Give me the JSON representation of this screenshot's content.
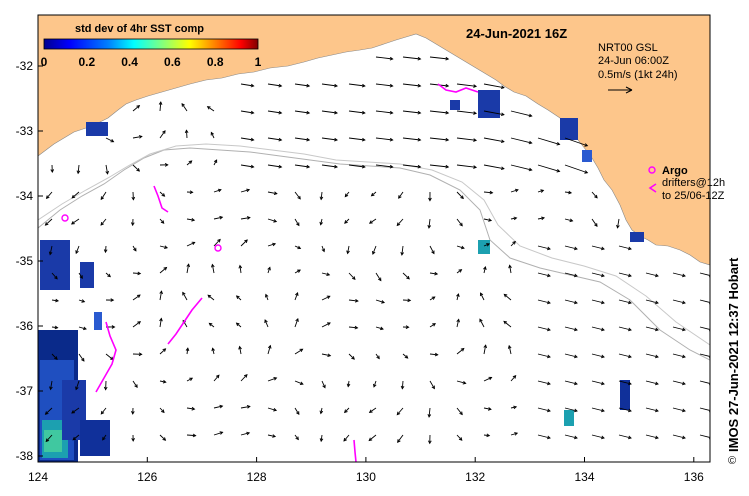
{
  "title": "24-Jun-2021 16Z",
  "colorbar": {
    "title": "std dev of 4hr SST comp",
    "ticks": [
      "0",
      "0.2",
      "0.4",
      "0.6",
      "0.8",
      "1"
    ],
    "colors": [
      "#00008f",
      "#0000ff",
      "#0080ff",
      "#00ffff",
      "#80ff80",
      "#ffff00",
      "#ff8000",
      "#ff0000",
      "#800000"
    ]
  },
  "current_info": {
    "source": "NRT00 GSL",
    "time": "24-Jun 06:00Z",
    "scale": "0.5m/s (1kt 24h)"
  },
  "argo": {
    "label": "Argo",
    "drifters_line1": "drifters@12h",
    "drifters_line2": "to 25/06-12Z"
  },
  "credit": "IMOS 27-Jun-2021 12:37 Hobart",
  "copyright_symbol": "©",
  "axes": {
    "x_ticks": [
      "124",
      "126",
      "128",
      "130",
      "132",
      "134",
      "136"
    ],
    "y_ticks": [
      "-32",
      "-33",
      "-34",
      "-35",
      "-36",
      "-37",
      "-38"
    ]
  },
  "colors": {
    "land": "#fdc68b",
    "argo": "#ff00ff",
    "arrow": "#000000",
    "bathymetry": "#b0b0b0"
  }
}
